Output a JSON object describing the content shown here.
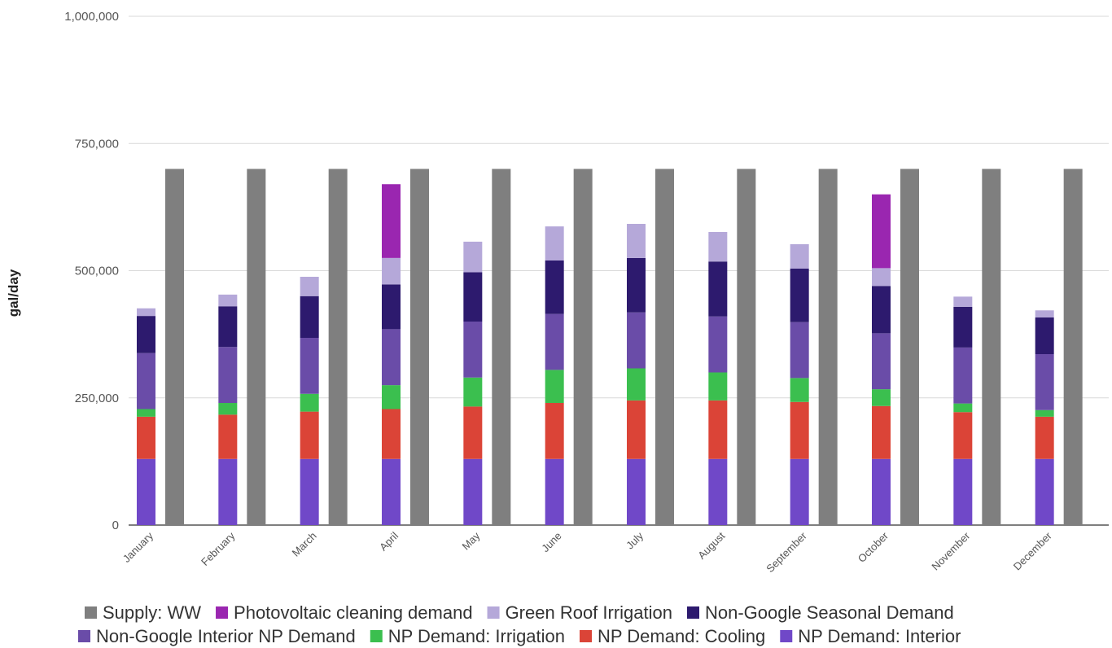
{
  "chart_data": {
    "type": "bar",
    "stacked": true,
    "title": "",
    "xlabel": "",
    "ylabel": "gal/day",
    "ylim": [
      0,
      1000000
    ],
    "yticks": [
      0,
      250000,
      500000,
      750000,
      1000000
    ],
    "ytick_labels": [
      "0",
      "250,000",
      "500,000",
      "750,000",
      "1,000,000"
    ],
    "grid": true,
    "legend_position": "bottom",
    "categories": [
      "January",
      "February",
      "March",
      "April",
      "May",
      "June",
      "July",
      "August",
      "September",
      "October",
      "November",
      "December"
    ],
    "demand_series": [
      {
        "name": "NP Demand: Interior",
        "color": "#7048c8",
        "values": [
          130000,
          130000,
          130000,
          130000,
          130000,
          130000,
          130000,
          130000,
          130000,
          130000,
          130000,
          130000
        ]
      },
      {
        "name": "NP Demand: Cooling",
        "color": "#db4437",
        "values": [
          83000,
          87000,
          93000,
          98000,
          103000,
          110000,
          115000,
          115000,
          112000,
          104000,
          92000,
          83000
        ]
      },
      {
        "name": "NP Demand: Irrigation",
        "color": "#3bbf4f",
        "values": [
          15000,
          23000,
          35000,
          47000,
          57000,
          65000,
          63000,
          55000,
          47000,
          33000,
          17000,
          13000
        ]
      },
      {
        "name": "Non-Google Interior NP Demand",
        "color": "#6a4ca8",
        "values": [
          110000,
          110000,
          110000,
          110000,
          110000,
          110000,
          110000,
          110000,
          110000,
          110000,
          110000,
          110000
        ]
      },
      {
        "name": "Non-Google Seasonal Demand",
        "color": "#2d1a6e",
        "values": [
          73000,
          80000,
          82000,
          88000,
          97000,
          105000,
          107000,
          108000,
          105000,
          93000,
          80000,
          72000
        ]
      },
      {
        "name": "Green Roof Irrigation",
        "color": "#b5a8d9",
        "values": [
          15000,
          23000,
          38000,
          52000,
          60000,
          67000,
          67000,
          58000,
          48000,
          35000,
          20000,
          14000
        ]
      },
      {
        "name": "Photovoltaic cleaning demand",
        "color": "#9a26b0",
        "values": [
          0,
          0,
          0,
          145000,
          0,
          0,
          0,
          0,
          0,
          145000,
          0,
          0
        ]
      }
    ],
    "supply_series": {
      "name": "Supply: WW",
      "color": "#7f7f7f",
      "values": [
        700000,
        700000,
        700000,
        700000,
        700000,
        700000,
        700000,
        700000,
        700000,
        700000,
        700000,
        700000
      ]
    },
    "legend": [
      [
        "Supply: WW",
        "Photovoltaic cleaning demand",
        "Green Roof Irrigation",
        "Non-Google Seasonal Demand"
      ],
      [
        "Non-Google Interior NP Demand",
        "NP Demand: Irrigation",
        "NP Demand: Cooling",
        "NP Demand: Interior"
      ]
    ]
  }
}
